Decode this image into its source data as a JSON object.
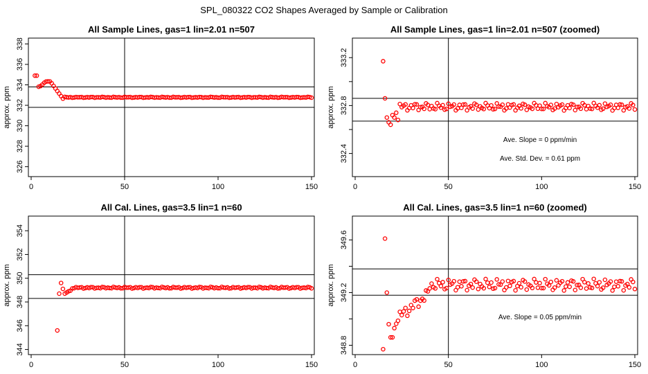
{
  "title": "SPL_080322  CO2 Shapes Averaged by Sample or Calibration",
  "marker_color": "#ff0000",
  "line_color": "#000000",
  "chart_data": [
    {
      "type": "scatter",
      "title": "All Sample Lines, gas=1 lin=2.01 n=507",
      "ylabel": "approx. ppm",
      "xlim": [
        0,
        150
      ],
      "ylim": [
        325.3,
        338.3
      ],
      "xticks": [
        0,
        50,
        100,
        150
      ],
      "yticks": [
        326,
        328,
        330,
        332,
        334,
        336,
        338
      ],
      "vline": 50,
      "hlines": [
        331.8,
        333.8
      ],
      "annotations": [],
      "series": [
        {
          "x": [],
          "y": []
        }
      ]
    },
    {
      "type": "scatter",
      "title": "All Sample Lines, gas=1 lin=2.01 n=507 (zoomed)",
      "ylabel": "approx. ppm",
      "xlim": [
        0,
        150
      ],
      "ylim": [
        332.23,
        333.34
      ],
      "xticks": [
        0,
        50,
        100,
        150
      ],
      "yticks": [
        332.2,
        332.4,
        332.6,
        332.8,
        333.0,
        333.2
      ],
      "yticklabels": [
        "",
        "332.4",
        "",
        "332.8",
        "",
        "333.2"
      ],
      "vline": 50,
      "hlines": [
        332.67,
        332.86
      ],
      "annotations": [
        "Ave. Slope =  0  ppm/min",
        "Ave. Std. Dev. =  0.61  ppm"
      ],
      "series": [
        {
          "x": [],
          "y": []
        }
      ]
    },
    {
      "type": "scatter",
      "title": "All Cal. Lines, gas=3.5 lin=1 n=60",
      "ylabel": "approx. ppm",
      "xlim": [
        0,
        150
      ],
      "ylim": [
        343.8,
        355.0
      ],
      "xticks": [
        0,
        50,
        100,
        150
      ],
      "yticks": [
        344,
        346,
        348,
        350,
        352,
        354
      ],
      "vline": 50,
      "hlines": [
        348.3,
        350.3
      ],
      "annotations": [],
      "series": [
        {
          "x": [],
          "y": []
        }
      ]
    },
    {
      "type": "scatter",
      "title": "All Cal. Lines, gas=3.5 lin=1 n=60 (zoomed)",
      "ylabel": "approx. ppm",
      "xlim": [
        0,
        150
      ],
      "ylim": [
        348.75,
        349.76
      ],
      "xticks": [
        0,
        50,
        100,
        150
      ],
      "yticks": [
        348.8,
        349.0,
        349.2,
        349.4,
        349.6
      ],
      "yticklabels": [
        "348.8",
        "",
        "349.2",
        "",
        "349.6"
      ],
      "vline": 50,
      "hlines": [
        349.18,
        349.38
      ],
      "annotations": [
        "Ave. Slope =  0.05  ppm/min"
      ],
      "series": [
        {
          "x": [],
          "y": []
        }
      ]
    }
  ]
}
